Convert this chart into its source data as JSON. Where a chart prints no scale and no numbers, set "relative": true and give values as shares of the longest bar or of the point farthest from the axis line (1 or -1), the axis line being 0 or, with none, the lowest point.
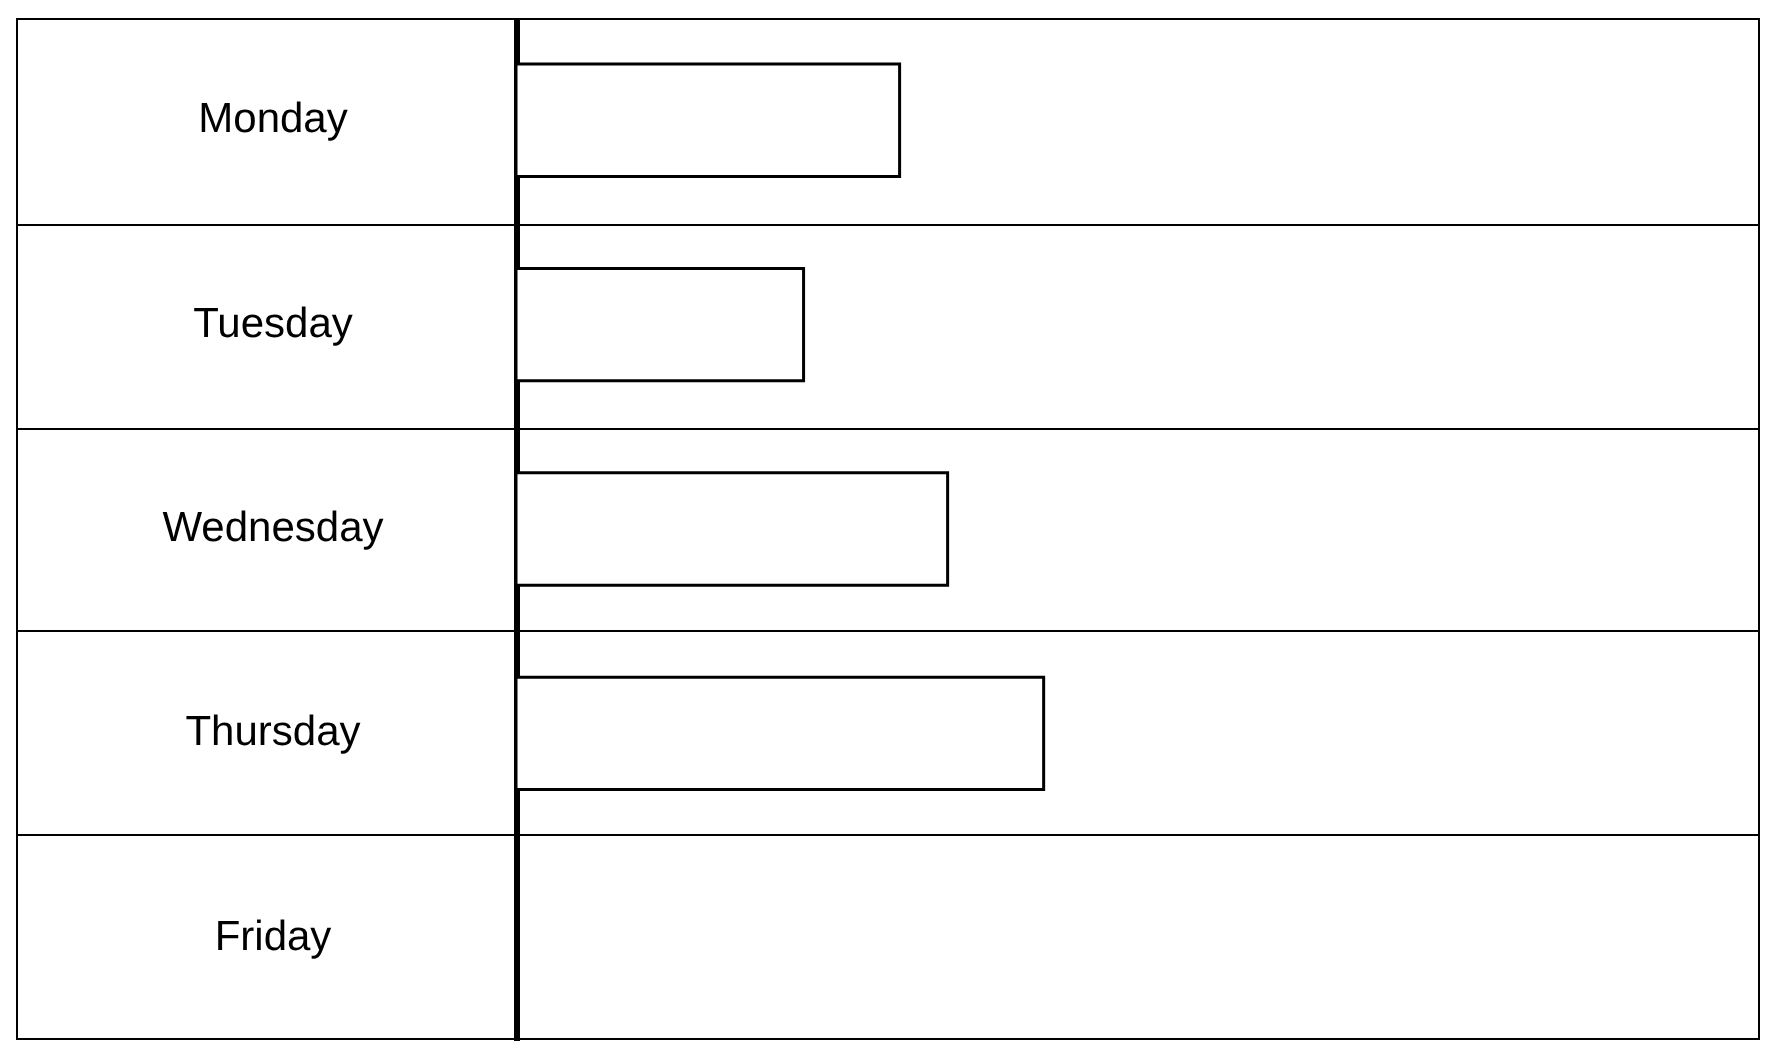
{
  "chart_data": {
    "type": "bar",
    "orientation": "horizontal",
    "relative": true,
    "categories": [
      "Monday",
      "Tuesday",
      "Wednesday",
      "Thursday",
      "Friday"
    ],
    "values": [
      0.727,
      0.545,
      0.818,
      1,
      0
    ],
    "color": "#ffffff"
  }
}
